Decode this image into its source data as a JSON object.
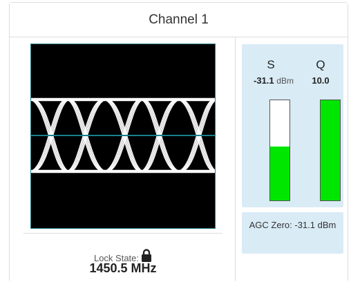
{
  "panel": {
    "title": "Channel 1"
  },
  "lock": {
    "label": "Lock State:",
    "frequency": "1450.5 MHz"
  },
  "signal": {
    "s_label": "S",
    "s_value": "-31.1",
    "s_unit": "dBm",
    "q_label": "Q",
    "q_value": "10.0",
    "s_level": 0.54,
    "q_level": 1.0
  },
  "agc": {
    "text": "AGC Zero: -31.1 dBm"
  },
  "colors": {
    "bar_fill": "#00e600",
    "info_bg": "#d9ebf5",
    "eye_bg": "#000000",
    "eye_trace": "#ffffff",
    "threshold": "#1a7f8a"
  },
  "icons": {
    "lock": "lock-icon"
  }
}
